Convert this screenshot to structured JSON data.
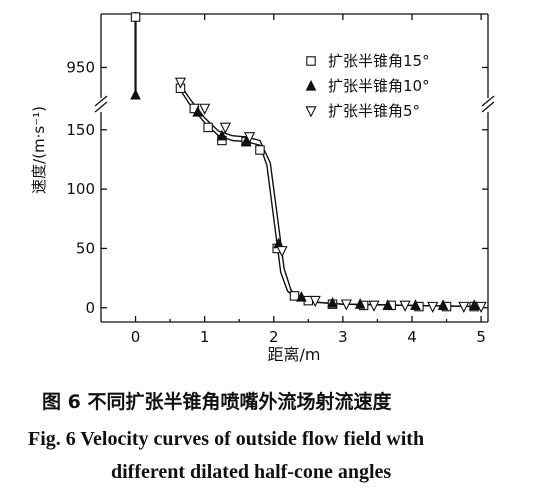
{
  "chart_data": {
    "type": "scatter",
    "xlabel": "距离/m",
    "ylabel": "速度/(m·s⁻¹)",
    "xlim": [
      -0.5,
      5.1
    ],
    "ylim_lower": [
      -12,
      165
    ],
    "ylim_upper": [
      930,
      985
    ],
    "axis_break_on_y": true,
    "x_ticks": [
      0,
      1,
      2,
      3,
      4,
      5
    ],
    "y_ticks_lower": [
      0,
      50,
      100,
      150
    ],
    "y_ticks_upper": [
      950
    ],
    "legend_position": "top-right",
    "grid": false,
    "series": [
      {
        "name": "扩张半锥角15°",
        "marker": "square-open",
        "x": [
          0,
          0.65,
          0.85,
          1.05,
          1.25,
          1.6,
          1.8,
          2.05,
          2.3,
          2.5,
          2.85,
          3.3,
          3.7,
          4.1,
          4.5,
          4.9
        ],
        "y": [
          983,
          185,
          168,
          152,
          141,
          140,
          133,
          50,
          10,
          6,
          3,
          2,
          2,
          1,
          1,
          1
        ]
      },
      {
        "name": "扩张半锥角10°",
        "marker": "triangle-up-filled",
        "x": [
          0,
          0.9,
          1.25,
          1.6,
          2.07,
          2.4,
          2.85,
          3.25,
          3.65,
          4.05,
          4.45,
          4.9
        ],
        "y": [
          932,
          165,
          145,
          140,
          54,
          9,
          4,
          3,
          2,
          2,
          2,
          2
        ]
      },
      {
        "name": "扩张半锥角5°",
        "marker": "triangle-down-open",
        "x": [
          0.65,
          1.0,
          1.3,
          1.65,
          2.12,
          2.6,
          3.05,
          3.45,
          3.9,
          4.3,
          4.75,
          5.0
        ],
        "y": [
          190,
          168,
          152,
          144,
          48,
          6,
          3,
          2,
          2,
          1,
          1,
          1
        ]
      }
    ],
    "fit_curves": [
      {
        "x": [
          0.6,
          0.8,
          1.0,
          1.2,
          1.4,
          1.6,
          1.8,
          1.9,
          2.0,
          2.1,
          2.2,
          2.3,
          2.5,
          3.0,
          4.0,
          5.0
        ],
        "y": [
          188,
          170,
          156,
          145,
          141,
          140,
          137,
          120,
          75,
          30,
          14,
          9,
          5,
          3,
          2,
          1
        ]
      },
      {
        "x": [
          0.6,
          0.8,
          1.0,
          1.2,
          1.4,
          1.6,
          1.8,
          1.95,
          2.05,
          2.15,
          2.25,
          2.35,
          2.55,
          3.0,
          4.0,
          5.0
        ],
        "y": [
          192,
          175,
          160,
          149,
          145,
          144,
          141,
          122,
          78,
          33,
          15,
          9,
          5,
          3,
          2,
          1
        ]
      }
    ]
  },
  "caption": {
    "cn": "图 6    不同扩张半锥角喷嘴外流场射流速度",
    "en_line1": "Fig. 6    Velocity curves of outside flow field with",
    "en_line2": "different dilated half-cone angles"
  },
  "colors": {
    "ink": "#111111",
    "background": "#ffffff"
  }
}
